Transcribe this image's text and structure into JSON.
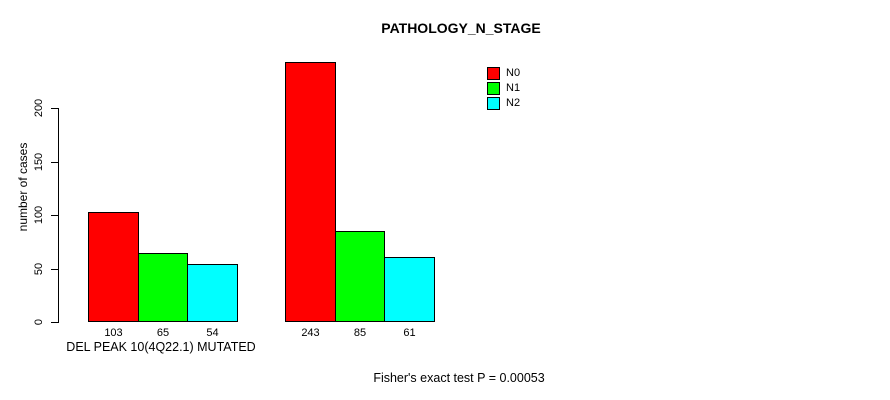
{
  "chart_data": {
    "type": "bar",
    "title": "PATHOLOGY_N_STAGE",
    "ylabel": "number of cases",
    "yticks": [
      0,
      50,
      100,
      150,
      200
    ],
    "ylim": [
      0,
      250
    ],
    "grid": false,
    "legend_position": "top-right",
    "categories": [
      "DEL PEAK 10(4Q22.1) MUTATED",
      ""
    ],
    "series": [
      {
        "name": "N0",
        "color": "#ff0000",
        "values": [
          103,
          243
        ]
      },
      {
        "name": "N1",
        "color": "#00ff00",
        "values": [
          65,
          85
        ]
      },
      {
        "name": "N2",
        "color": "#00ffff",
        "values": [
          54,
          61
        ]
      }
    ],
    "bar_value_labels": [
      [
        103,
        65,
        54
      ],
      [
        243,
        85,
        61
      ]
    ],
    "annotation": "Fisher's exact test P = 0.00053"
  }
}
